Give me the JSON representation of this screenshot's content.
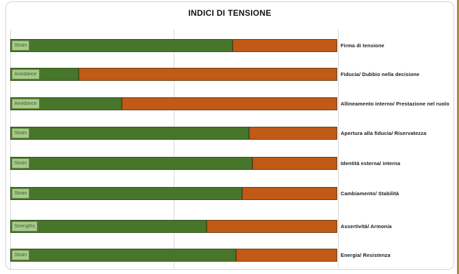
{
  "page": {
    "gold_edge_color": "#a78d3e",
    "frame_border_color": "#d6d2cc",
    "background_color": "#ffffff"
  },
  "chart_data": {
    "type": "bar",
    "variant": "horizontal-stacked-100pct",
    "title": "INDICI DI TENSIONE",
    "categories": [
      "Firma di tensione",
      "Fiducia/ Dubbio nella decisione",
      "Allineamento interno/ Prestazione nel ruolo",
      "Apertura alla fiducia/ Riservatezza",
      "Identità esterna/ interna",
      "Cambiamento/ Stabilità",
      "Assertività/ Armonia",
      "Energia/ Resistenza"
    ],
    "badges": [
      "Strain",
      "Avoidance",
      "Avoidance",
      "Strain",
      "Strain",
      "Strain",
      "Strengths",
      "Strain"
    ],
    "series": [
      {
        "name": "green-segment",
        "color": "#47762a",
        "values": [
          68,
          21,
          34,
          73,
          74,
          71,
          60,
          69
        ]
      },
      {
        "name": "orange-segment",
        "color": "#c05a16",
        "values": [
          32,
          79,
          66,
          27,
          26,
          29,
          40,
          31
        ]
      }
    ],
    "xlim": [
      0,
      100
    ],
    "gridlines_pct": [
      0,
      50,
      100
    ],
    "legend": "none",
    "colors": {
      "badge_bg": "#a9c88e",
      "badge_border": "#5e8f3b",
      "badge_text": "#3c6822",
      "gridline": "#d9d9d9",
      "title_text": "#111111",
      "label_text": "#1a1a1a"
    }
  }
}
